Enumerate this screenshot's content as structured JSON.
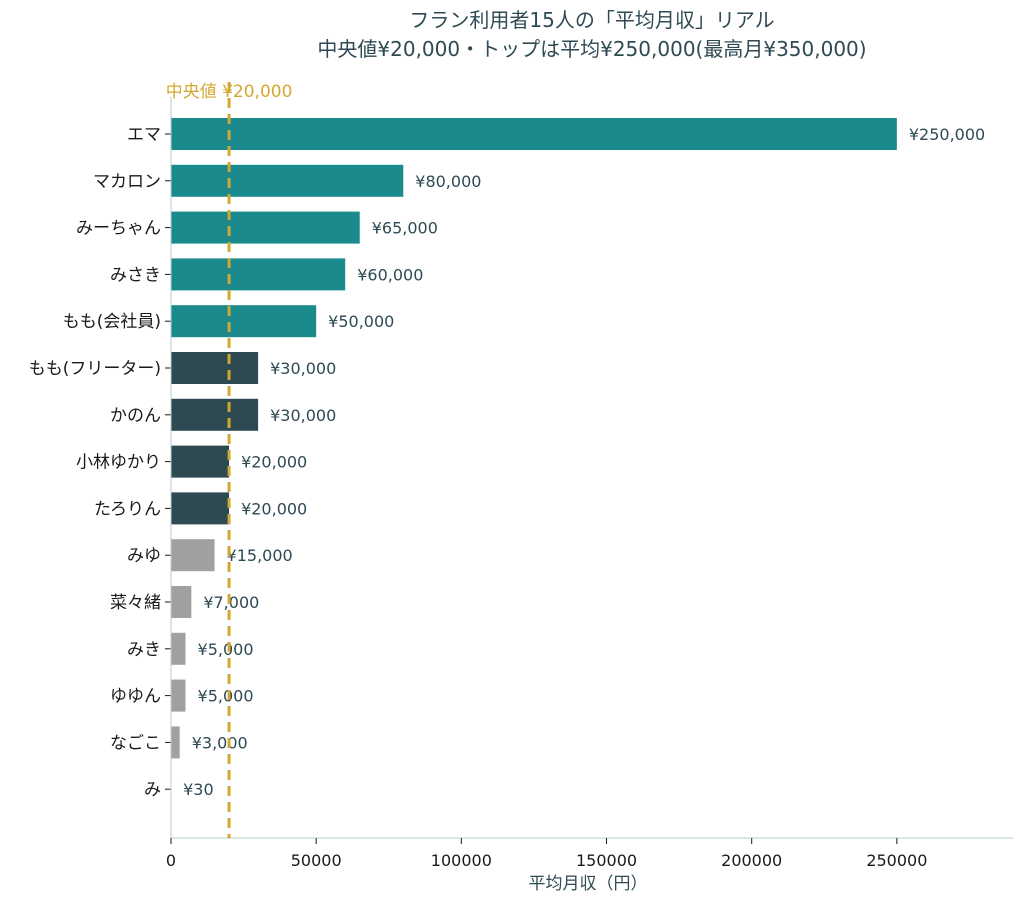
{
  "chart_data": {
    "type": "bar",
    "orientation": "horizontal",
    "title": "フラン利用者15人の「平均月収」リアル",
    "subtitle": "中央値¥20,000・トップは平均¥250,000(最高月¥350,000)",
    "xlabel": "平均月収（円）",
    "ylabel": "",
    "xlim": [
      0,
      290000
    ],
    "xticks": [
      0,
      50000,
      100000,
      150000,
      200000,
      250000
    ],
    "xtick_labels": [
      "0",
      "50000",
      "100000",
      "150000",
      "200000",
      "250000"
    ],
    "median": {
      "value": 20000,
      "label": "中央値 ¥20,000",
      "color": "#d4a830"
    },
    "colors": {
      "high": "#1b8a8c",
      "mid": "#2d4a52",
      "low": "#a0a0a0"
    },
    "categories": [
      "エマ",
      "マカロン",
      "みーちゃん",
      "みさき",
      "もも(会社員)",
      "もも(フリーター)",
      "かのん",
      "小林ゆかり",
      "たろりん",
      "みゆ",
      "菜々緒",
      "みき",
      "ゆゆん",
      "なごこ",
      "み"
    ],
    "values": [
      250000,
      80000,
      65000,
      60000,
      50000,
      30000,
      30000,
      20000,
      20000,
      15000,
      7000,
      5000,
      5000,
      3000,
      30
    ],
    "value_labels": [
      "¥250,000",
      "¥80,000",
      "¥65,000",
      "¥60,000",
      "¥50,000",
      "¥30,000",
      "¥30,000",
      "¥20,000",
      "¥20,000",
      "¥15,000",
      "¥7,000",
      "¥5,000",
      "¥5,000",
      "¥3,000",
      "¥30"
    ],
    "tiers": [
      "high",
      "high",
      "high",
      "high",
      "high",
      "mid",
      "mid",
      "mid",
      "mid",
      "low",
      "low",
      "low",
      "low",
      "low",
      "low"
    ],
    "grid": false,
    "legend": "none"
  }
}
